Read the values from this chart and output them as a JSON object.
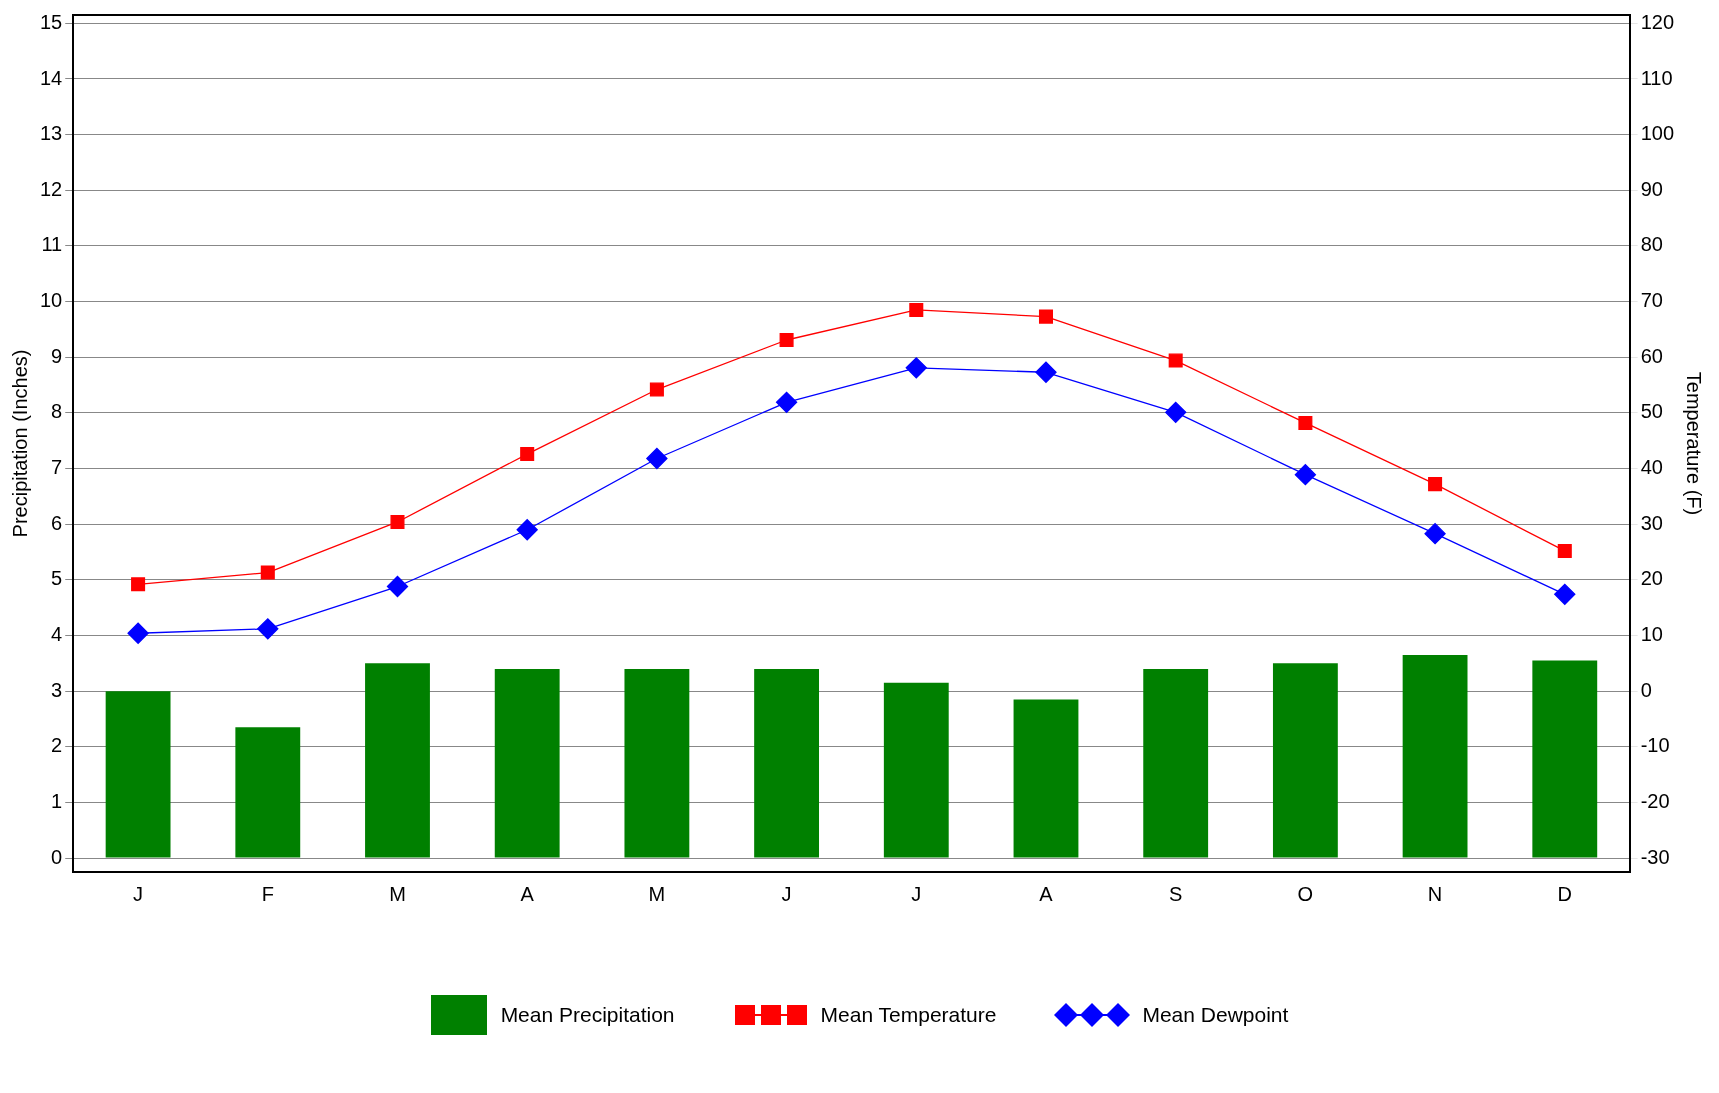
{
  "chart_data": {
    "type": "bar",
    "categories": [
      "J",
      "F",
      "M",
      "A",
      "M",
      "J",
      "J",
      "A",
      "S",
      "O",
      "N",
      "D"
    ],
    "series": [
      {
        "name": "Mean Precipitation",
        "color": "#008000",
        "values": [
          3.0,
          2.35,
          3.5,
          3.4,
          3.4,
          3.4,
          3.15,
          2.85,
          3.4,
          3.5,
          3.65,
          3.55
        ]
      },
      {
        "name": "Mean Temperature",
        "type": "line",
        "axis": "y2",
        "color": "#ff0000",
        "marker": "square",
        "values": [
          19.2,
          21.3,
          30.4,
          42.6,
          54.2,
          63.1,
          68.5,
          67.3,
          59.4,
          48.2,
          37.2,
          25.2
        ]
      },
      {
        "name": "Mean Dewpoint",
        "type": "line",
        "axis": "y2",
        "color": "#0000ff",
        "marker": "diamond",
        "values": [
          10.4,
          11.2,
          18.8,
          29.0,
          41.8,
          51.9,
          58.1,
          57.3,
          50.1,
          38.9,
          28.3,
          17.4
        ]
      }
    ],
    "ylabel": "Precipitation (Inches)",
    "y2label": "Temperature (F)",
    "ylim": [
      -0.25,
      15.15
    ],
    "yticks": [
      0,
      1,
      2,
      3,
      4,
      5,
      6,
      7,
      8,
      9,
      10,
      11,
      12,
      13,
      14,
      15
    ],
    "y2lim": [
      -32.5,
      121.5
    ],
    "y2ticks": [
      -30,
      -20,
      -10,
      0,
      10,
      20,
      30,
      40,
      50,
      60,
      70,
      80,
      90,
      100,
      110,
      120
    ],
    "grid": "y",
    "legend": "bottom"
  }
}
